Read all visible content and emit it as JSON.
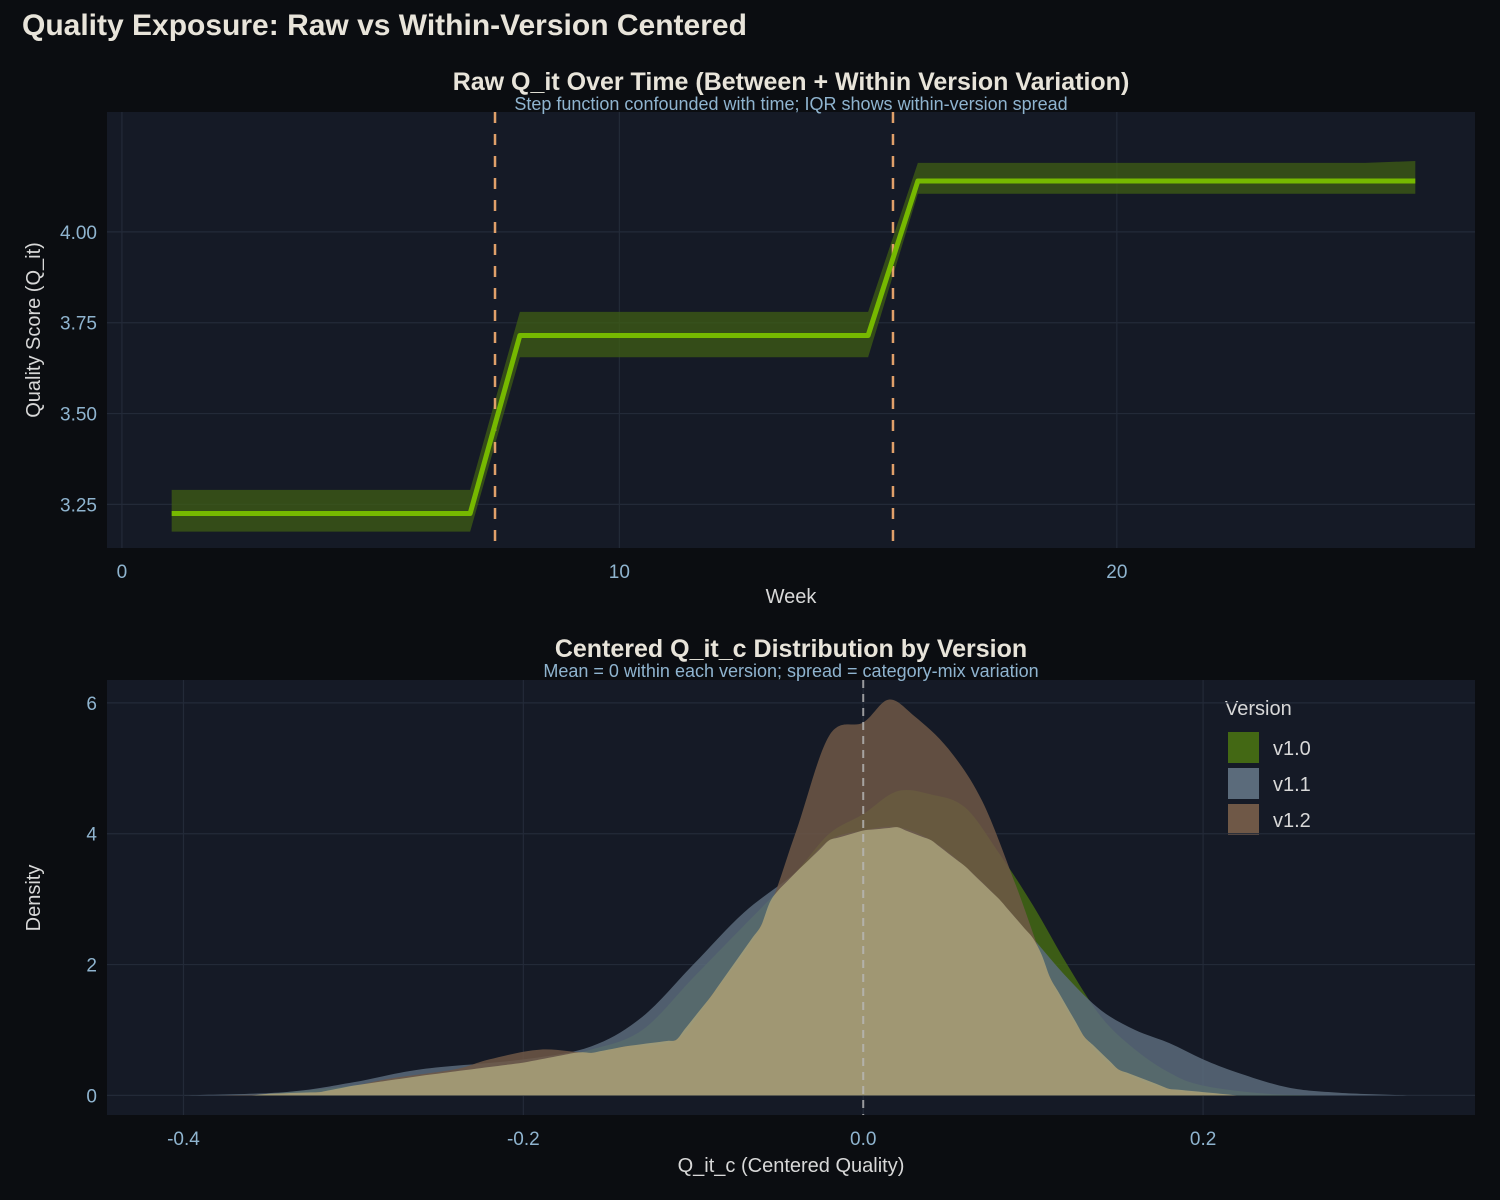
{
  "suptitle": "Quality Exposure: Raw vs Within-Version Centered",
  "chart_data": [
    {
      "type": "line",
      "title": "Raw Q_it Over Time (Between + Within Version Variation)",
      "subtitle": "Step function confounded with time; IQR shows within-version spread",
      "xlabel": "Week",
      "ylabel": "Quality Score (Q_it)",
      "xlim": [
        -0.3,
        27.2
      ],
      "ylim": [
        3.13,
        4.33
      ],
      "xticks": [
        0,
        10,
        20
      ],
      "yticks": [
        "3.25",
        "3.50",
        "3.75",
        "4.00"
      ],
      "grid": true,
      "line_color": "#76b900",
      "band_color": "#3f5e14",
      "vline_color": "#e0a06a",
      "version_change_weeks": [
        7.5,
        15.5
      ],
      "x": [
        1,
        2,
        3,
        4,
        5,
        6,
        7,
        8,
        9,
        10,
        11,
        12,
        13,
        14,
        15,
        16,
        17,
        18,
        19,
        20,
        21,
        22,
        23,
        24,
        25,
        26
      ],
      "median": [
        3.225,
        3.225,
        3.225,
        3.225,
        3.225,
        3.225,
        3.225,
        3.715,
        3.715,
        3.715,
        3.715,
        3.715,
        3.715,
        3.715,
        3.715,
        4.14,
        4.14,
        4.14,
        4.14,
        4.14,
        4.14,
        4.14,
        4.14,
        4.14,
        4.14,
        4.14
      ],
      "q1": [
        3.175,
        3.175,
        3.175,
        3.175,
        3.175,
        3.175,
        3.175,
        3.655,
        3.655,
        3.655,
        3.655,
        3.655,
        3.655,
        3.655,
        3.655,
        4.105,
        4.105,
        4.105,
        4.105,
        4.105,
        4.105,
        4.105,
        4.105,
        4.105,
        4.105,
        4.105
      ],
      "q3": [
        3.29,
        3.29,
        3.29,
        3.29,
        3.29,
        3.29,
        3.29,
        3.78,
        3.78,
        3.78,
        3.78,
        3.78,
        3.78,
        3.78,
        3.78,
        4.19,
        4.19,
        4.19,
        4.19,
        4.19,
        4.19,
        4.19,
        4.19,
        4.19,
        4.19,
        4.195
      ]
    },
    {
      "type": "area",
      "title": "Centered Q_it_c Distribution by Version",
      "subtitle": "Mean = 0 within each version; spread = category-mix variation",
      "xlabel": "Q_it_c (Centered Quality)",
      "ylabel": "Density",
      "xlim": [
        -0.445,
        0.36
      ],
      "ylim": [
        -0.3,
        6.35
      ],
      "xticks": [
        "-0.4",
        "-0.2",
        "0.0",
        "0.2"
      ],
      "xtick_values": [
        -0.4,
        -0.2,
        0,
        0.2
      ],
      "yticks": [
        0,
        2,
        4,
        6
      ],
      "grid": true,
      "zero_line": 0,
      "legend": {
        "title": "Version",
        "placement": "top-right"
      },
      "series": [
        {
          "name": "v1.0",
          "color": "#436814",
          "x": [
            -0.36,
            -0.3,
            -0.26,
            -0.2,
            -0.16,
            -0.13,
            -0.1,
            -0.07,
            -0.04,
            -0.02,
            0,
            0.02,
            0.04,
            0.06,
            0.08,
            0.1,
            0.12,
            0.14,
            0.16,
            0.18,
            0.2,
            0.24,
            0.28
          ],
          "y": [
            0,
            0.15,
            0.3,
            0.5,
            0.7,
            1.0,
            1.8,
            2.6,
            3.4,
            4.0,
            4.3,
            4.65,
            4.6,
            4.4,
            3.7,
            2.9,
            2.0,
            1.2,
            0.7,
            0.35,
            0.15,
            0.02,
            0
          ]
        },
        {
          "name": "v1.1",
          "color": "#5b6b7b",
          "x": [
            -0.4,
            -0.34,
            -0.3,
            -0.26,
            -0.2,
            -0.16,
            -0.13,
            -0.1,
            -0.07,
            -0.04,
            -0.02,
            0,
            0.02,
            0.04,
            0.06,
            0.08,
            0.1,
            0.12,
            0.14,
            0.16,
            0.18,
            0.2,
            0.22,
            0.25,
            0.28,
            0.32
          ],
          "y": [
            0,
            0.05,
            0.2,
            0.4,
            0.55,
            0.75,
            1.2,
            2.0,
            2.8,
            3.4,
            3.9,
            4.05,
            4.1,
            3.9,
            3.5,
            3.0,
            2.4,
            1.8,
            1.3,
            1.0,
            0.8,
            0.55,
            0.35,
            0.12,
            0.04,
            0
          ]
        },
        {
          "name": "v1.2",
          "color": "#6f5847",
          "x": [
            -0.38,
            -0.32,
            -0.28,
            -0.24,
            -0.22,
            -0.19,
            -0.16,
            -0.14,
            -0.11,
            -0.09,
            -0.06,
            -0.04,
            -0.02,
            0,
            0.015,
            0.03,
            0.05,
            0.07,
            0.09,
            0.11,
            0.13,
            0.15,
            0.18,
            0.22
          ],
          "y": [
            0,
            0.05,
            0.25,
            0.4,
            0.55,
            0.7,
            0.65,
            0.75,
            0.85,
            1.5,
            2.6,
            4.0,
            5.5,
            5.7,
            6.05,
            5.8,
            5.3,
            4.5,
            3.2,
            1.8,
            0.9,
            0.4,
            0.1,
            0
          ]
        }
      ]
    }
  ]
}
